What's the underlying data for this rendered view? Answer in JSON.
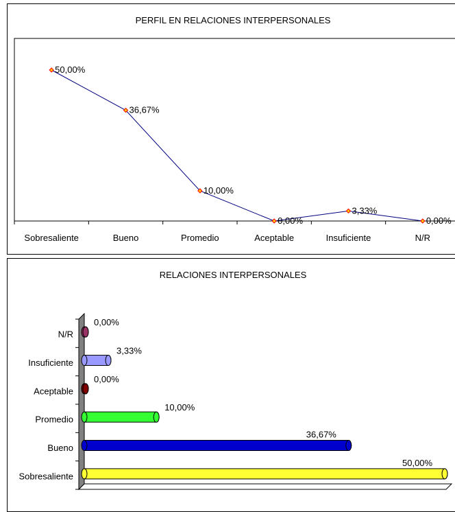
{
  "chart_data": [
    {
      "type": "line",
      "title": "PERFIL EN RELACIONES INTERPERSONALES",
      "categories": [
        "Sobresaliente",
        "Bueno",
        "Promedio",
        "Aceptable",
        "Insuficiente",
        "N/R"
      ],
      "values": [
        50.0,
        36.67,
        10.0,
        0.0,
        3.33,
        0.0
      ],
      "labels": [
        "50,00%",
        "36,67%",
        "10,00%",
        "0,00%",
        "3,33%",
        "0,00%"
      ],
      "ylim": [
        0,
        50
      ],
      "grid": false,
      "colors": {
        "line": "#000080",
        "marker": "#ff0000",
        "marker_fill": "#ffcc00"
      }
    },
    {
      "type": "bar",
      "title": "RELACIONES INTERPERSONALES",
      "categories": [
        "N/R",
        "Insuficiente",
        "Aceptable",
        "Promedio",
        "Bueno",
        "Sobresaliente"
      ],
      "values": [
        0.0,
        3.33,
        0.0,
        10.0,
        36.67,
        50.0
      ],
      "labels": [
        "0,00%",
        "3,33%",
        "0,00%",
        "10,00%",
        "36,67%",
        "50,00%"
      ],
      "xlim": [
        0,
        50
      ],
      "grid": false,
      "colors": [
        "#993366",
        "#9999ff",
        "#800000",
        "#33ff33",
        "#0000cc",
        "#ffff33"
      ]
    }
  ]
}
